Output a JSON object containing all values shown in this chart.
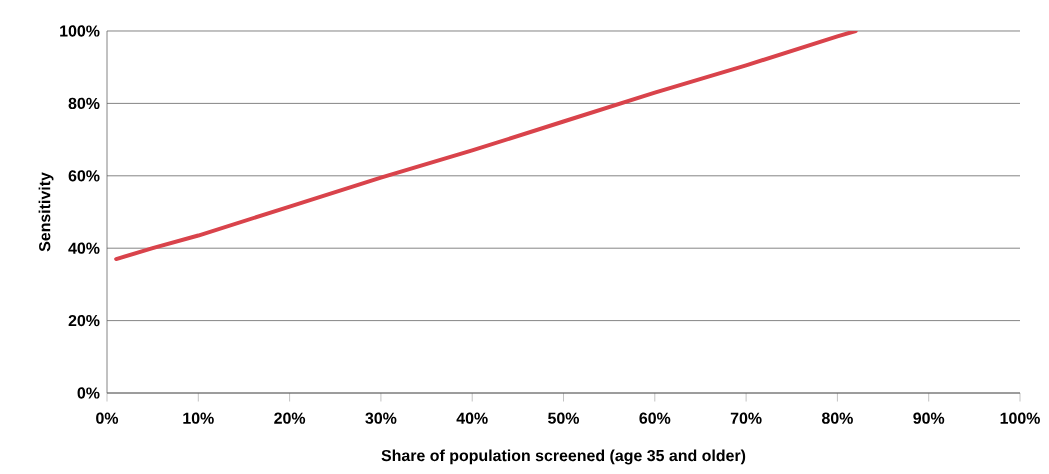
{
  "chart_data": {
    "type": "line",
    "xlabel": "Share of population screened (age 35 and older)",
    "ylabel": "Sensitivity",
    "x": [
      1,
      5,
      10,
      20,
      30,
      40,
      50,
      60,
      70,
      80,
      82
    ],
    "series": [
      {
        "color": "#d9434b",
        "values": [
          37,
          40,
          43.5,
          51.5,
          59.5,
          67,
          75,
          83,
          90.5,
          98.5,
          100
        ]
      }
    ],
    "xlim": [
      0,
      100
    ],
    "ylim": [
      0,
      100
    ],
    "xticks": [
      {
        "value": 0,
        "label": "0%"
      },
      {
        "value": 10,
        "label": "10%"
      },
      {
        "value": 20,
        "label": "20%"
      },
      {
        "value": 30,
        "label": "30%"
      },
      {
        "value": 40,
        "label": "40%"
      },
      {
        "value": 50,
        "label": "50%"
      },
      {
        "value": 60,
        "label": "60%"
      },
      {
        "value": 70,
        "label": "70%"
      },
      {
        "value": 80,
        "label": "80%"
      },
      {
        "value": 90,
        "label": "90%"
      },
      {
        "value": 100,
        "label": "100%"
      }
    ],
    "yticks": [
      {
        "value": 0,
        "label": "0%"
      },
      {
        "value": 20,
        "label": "20%"
      },
      {
        "value": 40,
        "label": "40%"
      },
      {
        "value": 60,
        "label": "60%"
      },
      {
        "value": 80,
        "label": "80%"
      },
      {
        "value": 100,
        "label": "100%"
      }
    ],
    "grid": "y",
    "legend": false,
    "marker": "none",
    "line_style": "solid"
  }
}
